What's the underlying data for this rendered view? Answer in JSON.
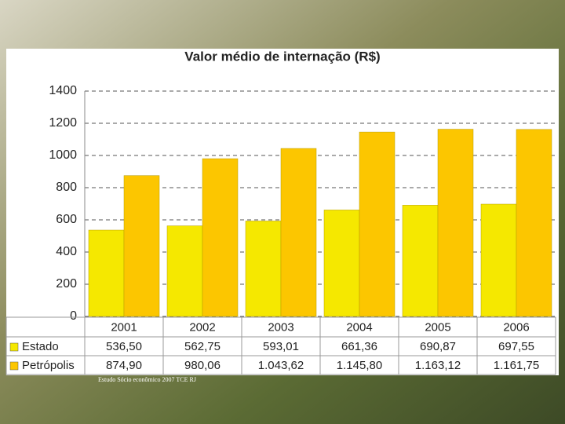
{
  "chart_data": {
    "type": "bar",
    "title": "Valor médio de internação (R$)",
    "categories": [
      "2001",
      "2002",
      "2003",
      "2004",
      "2005",
      "2006"
    ],
    "series": [
      {
        "name": "Estado",
        "color": "#f5e800",
        "values": [
          536.5,
          562.75,
          593.01,
          661.36,
          690.87,
          697.55
        ],
        "value_labels": [
          "536,50",
          "562,75",
          "593,01",
          "661,36",
          "690,87",
          "697,55"
        ]
      },
      {
        "name": "Petrópolis",
        "color": "#fcc600",
        "values": [
          874.9,
          980.06,
          1043.62,
          1145.8,
          1163.12,
          1161.75
        ],
        "value_labels": [
          "874,90",
          "980,06",
          "1.043,62",
          "1.145,80",
          "1.163,12",
          "1.161,75"
        ]
      }
    ],
    "ylim": [
      0,
      1400
    ],
    "yticks": [
      0,
      200,
      400,
      600,
      800,
      1000,
      1200,
      1400
    ],
    "grid": true,
    "footnote": "Estudo Sócio econômico 2007 TCE RJ"
  }
}
